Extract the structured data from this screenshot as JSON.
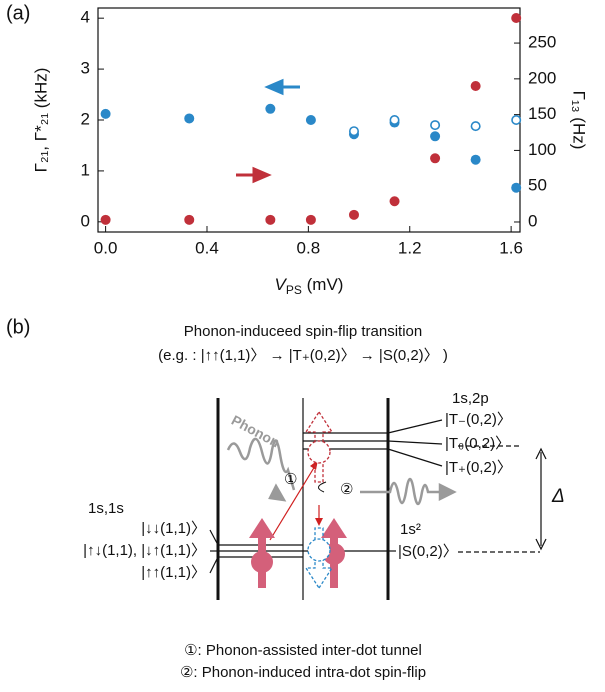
{
  "panel_labels": [
    "(a)",
    "(b)"
  ],
  "chart_data": {
    "type": "scatter",
    "xlabel": "VPS (mV)",
    "ylabel": "Γ₂₁, Γ*₂₁ (kHz)",
    "y2label": "Γ₁₃ (Hz)",
    "xlim": [
      -0.03,
      1.635
    ],
    "ylim": [
      -0.2,
      4.2
    ],
    "y2lim": [
      -14,
      299
    ],
    "xticks": [
      {
        "value": 0,
        "label": "0.0"
      },
      0.4,
      0.8,
      1.2,
      1.6
    ],
    "yticks": [
      0,
      1,
      2,
      3,
      4
    ],
    "y2ticks": [
      0,
      50,
      100,
      150,
      200,
      250
    ],
    "series": [
      {
        "color": "#2a88c8",
        "marker": "filled",
        "x": [
          0.0,
          0.33,
          0.65,
          0.81,
          0.98,
          1.14,
          1.3,
          1.46,
          1.62
        ],
        "values": [
          2.12,
          2.03,
          2.22,
          2.0,
          1.72,
          1.95,
          1.68,
          1.22,
          0.67
        ]
      },
      {
        "color": "#2a88c8",
        "marker": "open",
        "x": [
          0.98,
          1.14,
          1.3,
          1.46,
          1.62
        ],
        "values": [
          1.78,
          2.0,
          1.9,
          1.88,
          2.0
        ]
      },
      {
        "color": "#c0303a",
        "marker": "filled",
        "axis": "y2",
        "x": [
          0.0,
          0.33,
          0.65,
          0.81,
          0.98,
          1.14,
          1.3,
          1.46,
          1.62
        ],
        "values": [
          3,
          3,
          3,
          3,
          10,
          29,
          89,
          190,
          285
        ]
      }
    ]
  },
  "diagram": {
    "title": [
      "Phonon-induceed spin-flip transition",
      "(e.g. : |↑↑(1,1)〉 → |T₊(0,2)〉 → |S(0,2)〉 )"
    ],
    "phonon": "Phonon",
    "upper": {
      "label": "1s,2p",
      "states": [
        "|T₋(0,2)〉",
        "|T₀(0,2)〉",
        "|T₊(0,2)〉"
      ]
    },
    "left": {
      "label": "1s,1s",
      "states": [
        "|↓↓(1,1)〉",
        "|↑↓(1,1), |↓↑(1,1)〉",
        "|↑↑(1,1)〉"
      ]
    },
    "right": {
      "label": "1s²",
      "state": "|S(0,2)〉"
    },
    "delta": "Δ",
    "steps": [
      "①",
      "②"
    ],
    "notes": [
      "①: Phonon-assisted inter-dot tunnel",
      "②: Phonon-induced intra-dot spin-flip"
    ]
  }
}
